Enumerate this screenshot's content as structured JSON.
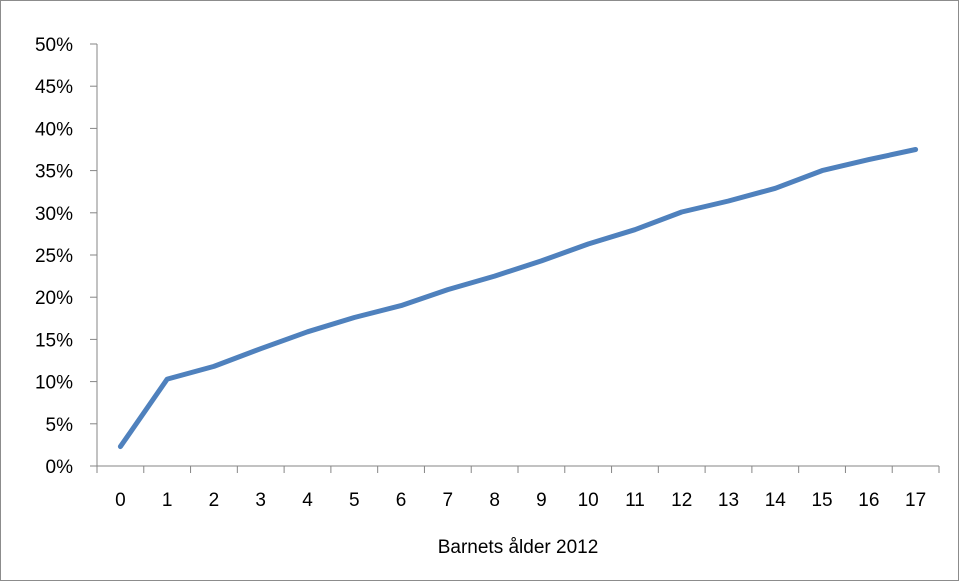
{
  "chart_data": {
    "type": "line",
    "xlabel": "Barnets ålder 2012",
    "ylabel": "",
    "x_ticks": [
      "0",
      "1",
      "2",
      "3",
      "4",
      "5",
      "6",
      "7",
      "8",
      "9",
      "10",
      "11",
      "12",
      "13",
      "14",
      "15",
      "16",
      "17"
    ],
    "y_ticks": [
      "0%",
      "5%",
      "10%",
      "15%",
      "20%",
      "25%",
      "30%",
      "35%",
      "40%",
      "45%",
      "50%"
    ],
    "ylim": [
      0,
      0.5
    ],
    "grid": false,
    "legend": "none",
    "series": [
      {
        "color": "#4f81bd",
        "x": [
          0,
          1,
          2,
          3,
          4,
          5,
          6,
          7,
          8,
          9,
          10,
          11,
          12,
          13,
          14,
          15,
          16,
          17
        ],
        "values": [
          0.023,
          0.103,
          0.118,
          0.139,
          0.159,
          0.176,
          0.19,
          0.209,
          0.225,
          0.243,
          0.263,
          0.28,
          0.301,
          0.314,
          0.329,
          0.35,
          0.363,
          0.375
        ]
      }
    ]
  }
}
